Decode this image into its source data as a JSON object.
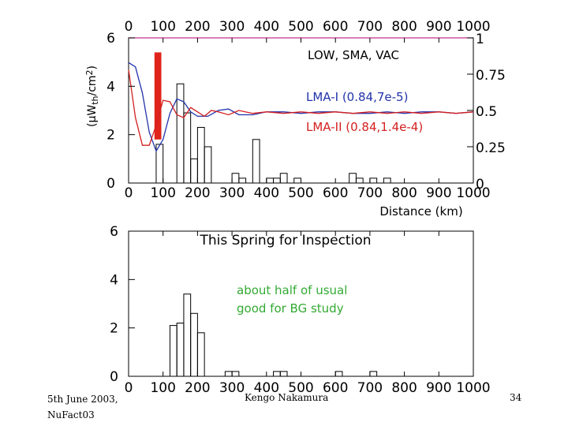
{
  "footer": {
    "date": "5th June 2003,",
    "venue": "NuFact03",
    "author": "Kengo Nakamura",
    "page": "34"
  },
  "chart_data": [
    {
      "type": "line",
      "ylabel": "(μW",
      "ylabel_sub": "th",
      "ylabel_tail": "/cm",
      "ylabel_sup": "2",
      "ylabel_end": ")",
      "xlabel": "Distance (km)",
      "xlim": [
        0,
        1000
      ],
      "ylim": [
        0,
        6
      ],
      "right_ylim": [
        0,
        1
      ],
      "x_ticks_top": [
        "0",
        "100",
        "200",
        "300",
        "400",
        "500",
        "600",
        "700",
        "800",
        "900",
        "1000"
      ],
      "x_ticks_bottom": [
        "0",
        "100",
        "200",
        "300",
        "400",
        "500",
        "600",
        "700",
        "800",
        "900",
        "1000"
      ],
      "y_ticks_left": [
        "0",
        "2",
        "4",
        "6"
      ],
      "y_ticks_right": [
        "0",
        "0.25",
        "0.5",
        "0.75",
        "1"
      ],
      "histogram": {
        "bin_width": 20,
        "bins": [
          {
            "x": 80,
            "y": 1.6
          },
          {
            "x": 140,
            "y": 4.1
          },
          {
            "x": 160,
            "y": 2.9
          },
          {
            "x": 180,
            "y": 1.0
          },
          {
            "x": 200,
            "y": 2.3
          },
          {
            "x": 220,
            "y": 1.5
          },
          {
            "x": 300,
            "y": 0.4
          },
          {
            "x": 320,
            "y": 0.2
          },
          {
            "x": 360,
            "y": 1.8
          },
          {
            "x": 400,
            "y": 0.2
          },
          {
            "x": 420,
            "y": 0.2
          },
          {
            "x": 440,
            "y": 0.4
          },
          {
            "x": 480,
            "y": 0.2
          },
          {
            "x": 640,
            "y": 0.4
          },
          {
            "x": 660,
            "y": 0.2
          },
          {
            "x": 700,
            "y": 0.2
          },
          {
            "x": 740,
            "y": 0.2
          }
        ]
      },
      "highlight_band": {
        "x_from": 75,
        "x_to": 95,
        "y_from": 1.8,
        "y_to": 5.4,
        "color": "#e0241b"
      },
      "series": [
        {
          "name": "LOW, SMA, VAC",
          "color": "#c0308a",
          "x": [
            0,
            1000
          ],
          "y": [
            1.0,
            1.0
          ]
        },
        {
          "name": "LMA-I (0.84,7e-5)",
          "color": "#2233aa",
          "x": [
            0,
            20,
            40,
            60,
            80,
            100,
            120,
            140,
            160,
            180,
            200,
            230,
            260,
            290,
            320,
            360,
            400,
            450,
            500,
            550,
            600,
            650,
            700,
            750,
            800,
            850,
            900,
            950,
            1000
          ],
          "y": [
            0.83,
            0.8,
            0.62,
            0.35,
            0.22,
            0.3,
            0.48,
            0.58,
            0.56,
            0.49,
            0.46,
            0.46,
            0.5,
            0.51,
            0.47,
            0.47,
            0.49,
            0.49,
            0.48,
            0.49,
            0.49,
            0.48,
            0.48,
            0.49,
            0.48,
            0.49,
            0.49,
            0.48,
            0.49
          ]
        },
        {
          "name": "LMA-II (0.84,1.4e-4)",
          "color": "#d42020",
          "x": [
            0,
            20,
            40,
            60,
            80,
            100,
            120,
            140,
            160,
            180,
            200,
            220,
            240,
            260,
            290,
            320,
            360,
            400,
            450,
            500,
            550,
            600,
            650,
            700,
            750,
            800,
            850,
            900,
            950,
            1000
          ],
          "y": [
            0.78,
            0.45,
            0.26,
            0.26,
            0.4,
            0.57,
            0.56,
            0.47,
            0.45,
            0.52,
            0.49,
            0.46,
            0.5,
            0.49,
            0.47,
            0.5,
            0.48,
            0.49,
            0.48,
            0.49,
            0.48,
            0.49,
            0.48,
            0.49,
            0.48,
            0.49,
            0.48,
            0.49,
            0.48,
            0.49
          ]
        }
      ]
    },
    {
      "type": "bar",
      "title": "This Spring for Inspection",
      "annotation_lines": [
        "about half of usual",
        "good for BG study"
      ],
      "annotation_color": "#33aa33",
      "xlim": [
        0,
        1000
      ],
      "ylim": [
        0,
        6
      ],
      "x_ticks_bottom": [
        "0",
        "100",
        "200",
        "300",
        "400",
        "500",
        "600",
        "700",
        "800",
        "900",
        "1000"
      ],
      "y_ticks_left": [
        "0",
        "2",
        "4",
        "6"
      ],
      "histogram": {
        "bin_width": 20,
        "bins": [
          {
            "x": 120,
            "y": 2.1
          },
          {
            "x": 140,
            "y": 2.2
          },
          {
            "x": 160,
            "y": 3.4
          },
          {
            "x": 180,
            "y": 2.6
          },
          {
            "x": 200,
            "y": 1.8
          },
          {
            "x": 280,
            "y": 0.2
          },
          {
            "x": 300,
            "y": 0.2
          },
          {
            "x": 420,
            "y": 0.2
          },
          {
            "x": 440,
            "y": 0.2
          },
          {
            "x": 600,
            "y": 0.2
          },
          {
            "x": 700,
            "y": 0.2
          }
        ]
      }
    }
  ]
}
